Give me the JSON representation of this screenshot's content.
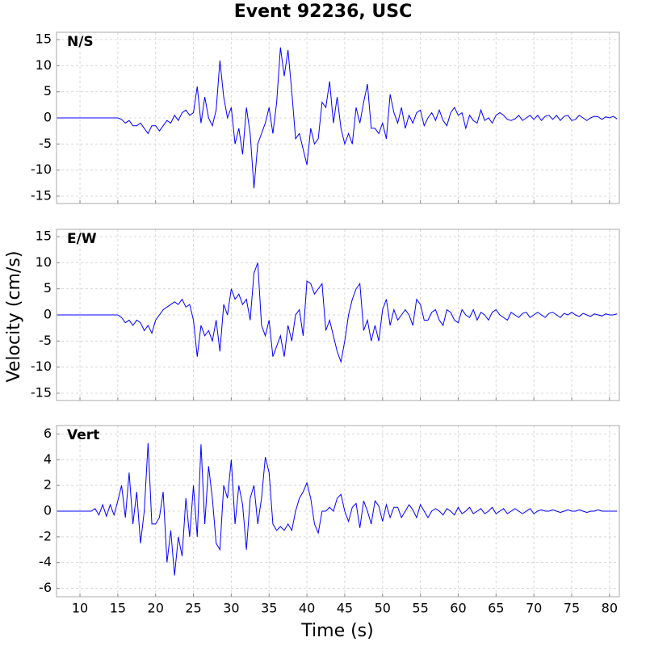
{
  "title": "Event 92236, USC",
  "xlabel": "Time (s)",
  "ylabel": "Velocity (cm/s)",
  "chart_data": [
    {
      "type": "line",
      "grid": true,
      "xlim": [
        6.9,
        81.3
      ],
      "ylim": [
        -16.4,
        16.4
      ],
      "xticks": [
        10,
        15,
        20,
        25,
        30,
        35,
        40,
        45,
        50,
        55,
        60,
        65,
        70,
        75,
        80
      ],
      "yticks": [
        -15,
        -10,
        -5,
        0,
        5,
        10,
        15
      ],
      "x": [
        7,
        7.5,
        8,
        8.5,
        9,
        9.5,
        10,
        10.5,
        11,
        11.5,
        12,
        12.5,
        13,
        13.5,
        14,
        14.5,
        15,
        15.5,
        16,
        16.5,
        17,
        17.5,
        18,
        18.5,
        19,
        19.5,
        20,
        20.5,
        21,
        21.5,
        22,
        22.5,
        23,
        23.5,
        24,
        24.5,
        25,
        25.5,
        26,
        26.5,
        27,
        27.5,
        28,
        28.5,
        29,
        29.5,
        30,
        30.5,
        31,
        31.5,
        32,
        32.5,
        33,
        33.5,
        34,
        34.5,
        35,
        35.5,
        36,
        36.5,
        37,
        37.5,
        38,
        38.5,
        39,
        39.5,
        40,
        40.5,
        41,
        41.5,
        42,
        42.5,
        43,
        43.5,
        44,
        44.5,
        45,
        45.5,
        46,
        46.5,
        47,
        47.5,
        48,
        48.5,
        49,
        49.5,
        50,
        50.5,
        51,
        51.5,
        52,
        52.5,
        53,
        53.5,
        54,
        54.5,
        55,
        55.5,
        56,
        56.5,
        57,
        57.5,
        58,
        58.5,
        59,
        59.5,
        60,
        60.5,
        61,
        61.5,
        62,
        62.5,
        63,
        63.5,
        64,
        64.5,
        65,
        65.5,
        66,
        66.5,
        67,
        67.5,
        68,
        68.5,
        69,
        69.5,
        70,
        70.5,
        71,
        71.5,
        72,
        72.5,
        73,
        73.5,
        74,
        74.5,
        75,
        75.5,
        76,
        76.5,
        77,
        77.5,
        78,
        78.5,
        79,
        79.5,
        80,
        80.5,
        81
      ],
      "series": [
        {
          "name": "N/S",
          "color": "#0000ff",
          "values": [
            0,
            0,
            0,
            0,
            0,
            0,
            0,
            0,
            0,
            0,
            0,
            0,
            0,
            0,
            0,
            0,
            0,
            -0.3,
            -1,
            -0.5,
            -1.5,
            -1.5,
            -1.0,
            -2,
            -3,
            -1.5,
            -1.5,
            -2.5,
            -1.5,
            -0.5,
            -1,
            0.5,
            -0.5,
            1,
            1.5,
            0.5,
            1,
            6,
            -1,
            4,
            0,
            -1.5,
            1.5,
            11,
            4,
            0,
            2,
            -5,
            -2,
            -7,
            2,
            -3,
            -13.5,
            -5,
            -3,
            -1,
            2,
            -3,
            3,
            13.5,
            8,
            13,
            5,
            -4,
            -3,
            -6,
            -9,
            -2,
            -5,
            -4,
            3,
            2,
            7,
            -1,
            4,
            -2,
            -5,
            -3,
            -5,
            2,
            -1,
            3,
            6.5,
            -2,
            -2,
            -3,
            -1,
            -4,
            4.5,
            1,
            -1,
            2,
            -2,
            0.5,
            -1,
            1,
            1.5,
            -1.5,
            0,
            1,
            -0.5,
            1.5,
            -0.5,
            -1.5,
            1,
            2,
            0.5,
            1,
            -2,
            0.5,
            -0.5,
            -1,
            1.5,
            -0.5,
            0,
            -1,
            0.5,
            1,
            0.5,
            -0.3,
            -0.5,
            -0.2,
            0.5,
            -0.5,
            0,
            0.5,
            -0.3,
            0.5,
            -0.5,
            0.3,
            0.5,
            -0.3,
            0.5,
            -0.5,
            0.3,
            0.5,
            -0.5,
            -0.3,
            0.5,
            0,
            -0.5,
            0,
            0.3,
            0.2,
            -0.3,
            0.2,
            0,
            0.3,
            -0.2
          ]
        }
      ]
    },
    {
      "type": "line",
      "grid": true,
      "xlim": [
        6.9,
        81.3
      ],
      "ylim": [
        -16.4,
        16.4
      ],
      "xticks": [
        10,
        15,
        20,
        25,
        30,
        35,
        40,
        45,
        50,
        55,
        60,
        65,
        70,
        75,
        80
      ],
      "yticks": [
        -15,
        -10,
        -5,
        0,
        5,
        10,
        15
      ],
      "x": [
        7,
        7.5,
        8,
        8.5,
        9,
        9.5,
        10,
        10.5,
        11,
        11.5,
        12,
        12.5,
        13,
        13.5,
        14,
        14.5,
        15,
        15.5,
        16,
        16.5,
        17,
        17.5,
        18,
        18.5,
        19,
        19.5,
        20,
        20.5,
        21,
        21.5,
        22,
        22.5,
        23,
        23.5,
        24,
        24.5,
        25,
        25.5,
        26,
        26.5,
        27,
        27.5,
        28,
        28.5,
        29,
        29.5,
        30,
        30.5,
        31,
        31.5,
        32,
        32.5,
        33,
        33.5,
        34,
        34.5,
        35,
        35.5,
        36,
        36.5,
        37,
        37.5,
        38,
        38.5,
        39,
        39.5,
        40,
        40.5,
        41,
        41.5,
        42,
        42.5,
        43,
        43.5,
        44,
        44.5,
        45,
        45.5,
        46,
        46.5,
        47,
        47.5,
        48,
        48.5,
        49,
        49.5,
        50,
        50.5,
        51,
        51.5,
        52,
        52.5,
        53,
        53.5,
        54,
        54.5,
        55,
        55.5,
        56,
        56.5,
        57,
        57.5,
        58,
        58.5,
        59,
        59.5,
        60,
        60.5,
        61,
        61.5,
        62,
        62.5,
        63,
        63.5,
        64,
        64.5,
        65,
        65.5,
        66,
        66.5,
        67,
        67.5,
        68,
        68.5,
        69,
        69.5,
        70,
        70.5,
        71,
        71.5,
        72,
        72.5,
        73,
        73.5,
        74,
        74.5,
        75,
        75.5,
        76,
        76.5,
        77,
        77.5,
        78,
        78.5,
        79,
        79.5,
        80,
        80.5,
        81
      ],
      "series": [
        {
          "name": "E/W",
          "color": "#0000ff",
          "values": [
            0,
            0,
            0,
            0,
            0,
            0,
            0,
            0,
            0,
            0,
            0,
            0,
            0,
            0,
            0,
            0,
            0,
            -0.5,
            -1.5,
            -1,
            -2,
            -1,
            -1.5,
            -3,
            -2,
            -3.5,
            -1,
            0,
            1,
            1.5,
            2,
            2.5,
            2,
            3,
            1.5,
            2,
            -1,
            -8,
            -2,
            -4,
            -3,
            -5,
            -1,
            -7,
            2,
            0,
            5,
            3,
            4,
            2,
            3,
            -1,
            8,
            10,
            -2,
            -4,
            -1,
            -8,
            -6,
            -4,
            -8,
            -2,
            -5,
            0,
            1,
            -4,
            6.5,
            6,
            4,
            5,
            6,
            -3,
            -1,
            -4,
            -7,
            -9,
            -5,
            0,
            3,
            5,
            6,
            -3,
            -1,
            -5,
            -2,
            -5,
            1,
            3,
            -2,
            1,
            -1,
            0,
            1,
            0,
            -2,
            3,
            2,
            -1,
            -1,
            0.5,
            1,
            -1,
            -2,
            1,
            0.5,
            -1,
            -1.5,
            1,
            0,
            -0.5,
            1,
            -1,
            0.5,
            0,
            -1,
            0.5,
            1,
            0,
            -0.5,
            -1,
            0.5,
            0,
            -0.5,
            0.3,
            0.5,
            -0.5,
            0,
            0.5,
            0,
            -0.5,
            0.3,
            0.5,
            0,
            -0.5,
            0.3,
            0,
            0.5,
            0,
            -0.3,
            0.3,
            0,
            -0.3,
            0.2,
            0,
            -0.2,
            0.2,
            0,
            0,
            0.2
          ]
        }
      ]
    },
    {
      "type": "line",
      "grid": true,
      "xlim": [
        6.9,
        81.3
      ],
      "ylim": [
        -6.66,
        6.66
      ],
      "xticks": [
        10,
        15,
        20,
        25,
        30,
        35,
        40,
        45,
        50,
        55,
        60,
        65,
        70,
        75,
        80
      ],
      "yticks": [
        -6,
        -4,
        -2,
        0,
        2,
        4,
        6
      ],
      "x": [
        7,
        7.5,
        8,
        8.5,
        9,
        9.5,
        10,
        10.5,
        11,
        11.5,
        12,
        12.5,
        13,
        13.5,
        14,
        14.5,
        15,
        15.5,
        16,
        16.5,
        17,
        17.5,
        18,
        18.5,
        19,
        19.5,
        20,
        20.5,
        21,
        21.5,
        22,
        22.5,
        23,
        23.5,
        24,
        24.5,
        25,
        25.5,
        26,
        26.5,
        27,
        27.5,
        28,
        28.5,
        29,
        29.5,
        30,
        30.5,
        31,
        31.5,
        32,
        32.5,
        33,
        33.5,
        34,
        34.5,
        35,
        35.5,
        36,
        36.5,
        37,
        37.5,
        38,
        38.5,
        39,
        39.5,
        40,
        40.5,
        41,
        41.5,
        42,
        42.5,
        43,
        43.5,
        44,
        44.5,
        45,
        45.5,
        46,
        46.5,
        47,
        47.5,
        48,
        48.5,
        49,
        49.5,
        50,
        50.5,
        51,
        51.5,
        52,
        52.5,
        53,
        53.5,
        54,
        54.5,
        55,
        55.5,
        56,
        56.5,
        57,
        57.5,
        58,
        58.5,
        59,
        59.5,
        60,
        60.5,
        61,
        61.5,
        62,
        62.5,
        63,
        63.5,
        64,
        64.5,
        65,
        65.5,
        66,
        66.5,
        67,
        67.5,
        68,
        68.5,
        69,
        69.5,
        70,
        70.5,
        71,
        71.5,
        72,
        72.5,
        73,
        73.5,
        74,
        74.5,
        75,
        75.5,
        76,
        76.5,
        77,
        77.5,
        78,
        78.5,
        79,
        79.5,
        80,
        80.5,
        81
      ],
      "series": [
        {
          "name": "Vert",
          "color": "#0000ff",
          "values": [
            0,
            0,
            0,
            0,
            0,
            0,
            0,
            0,
            0,
            0,
            0.2,
            -0.3,
            0.5,
            -0.4,
            0.5,
            -0.3,
            0.8,
            2,
            -0.5,
            3,
            -1,
            1.5,
            -2.5,
            0,
            5.3,
            -1,
            -1,
            -0.5,
            1.5,
            -4,
            -1.5,
            -5,
            -2,
            -3.5,
            1,
            -2,
            2,
            -2,
            5.2,
            -1,
            3.5,
            1,
            -2.5,
            -3,
            2,
            1,
            4,
            -1,
            2,
            0.5,
            -3,
            1,
            2,
            -1,
            1,
            4.2,
            3,
            -1,
            -1.5,
            -1.2,
            -1.5,
            -1,
            -1.5,
            0,
            1,
            1.5,
            2.2,
            1,
            -1,
            -1.7,
            0,
            0,
            0.3,
            0,
            1,
            1.3,
            0,
            -0.8,
            0.3,
            0.6,
            -1.3,
            0.8,
            0,
            -1,
            0.8,
            0.4,
            -0.8,
            0.5,
            -0.5,
            0.3,
            0.3,
            -0.5,
            0,
            0.5,
            0.1,
            -0.5,
            0.5,
            0,
            -0.5,
            0,
            0.2,
            0,
            -0.3,
            0.2,
            0,
            -0.3,
            0.3,
            -0.2,
            0,
            0.3,
            -0.2,
            0,
            0.2,
            -0.2,
            0,
            0.3,
            -0.2,
            0,
            0.2,
            -0.2,
            0,
            0.2,
            0,
            -0.2,
            0,
            0.2,
            -0.2,
            0,
            0.1,
            0,
            0,
            0.1,
            0,
            -0.1,
            0,
            0.1,
            0,
            0,
            0.1,
            0,
            -0.1,
            0,
            0,
            0.1,
            0,
            0,
            0,
            0,
            0
          ]
        }
      ]
    }
  ]
}
